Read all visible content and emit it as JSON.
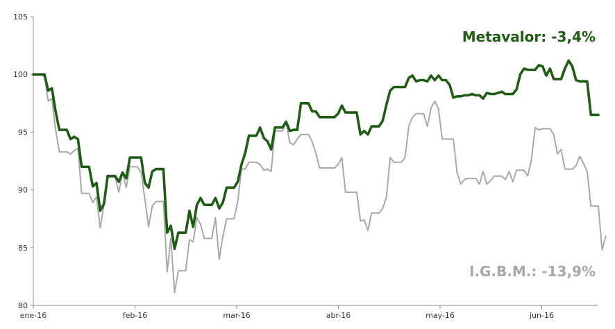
{
  "chart_data": {
    "type": "line",
    "title": "",
    "xlabel": "",
    "ylabel": "",
    "ylim": [
      80,
      105
    ],
    "y_ticks": [
      "80",
      "85",
      "90",
      "95",
      "100",
      "105"
    ],
    "x_ticks": [
      "ene-16",
      "feb-16",
      "mar-16",
      "abr-16",
      "may-16",
      "jun-16"
    ],
    "grid": false,
    "annotations": {
      "metavalor": "Metavalor: -3,4%",
      "igbm": "I.G.B.M.: -13,9%"
    },
    "colors": {
      "metavalor": "#1e5c14",
      "igbm": "#a8a8a8"
    },
    "series": [
      {
        "key": "metavalor",
        "values": [
          100,
          100,
          100,
          100,
          98.6,
          98.8,
          96.8,
          95.2,
          95.2,
          95.2,
          94.4,
          94.6,
          94.4,
          92,
          92,
          92,
          90.3,
          90.6,
          88.2,
          88.8,
          91.2,
          91.2,
          91.2,
          90.7,
          91.5,
          91,
          92.8,
          92.8,
          92.8,
          92.8,
          90.6,
          90.2,
          91.6,
          91.8,
          91.8,
          91.8,
          86.3,
          86.9,
          84.9,
          86.3,
          86.3,
          86.3,
          88.2,
          86.8,
          88.7,
          89.3,
          88.7,
          88.7,
          88.7,
          89.3,
          88.4,
          88.9,
          90.2,
          90.2,
          90.2,
          90.7,
          92.2,
          93.2,
          94.7,
          94.7,
          94.7,
          95.4,
          94.5,
          94.2,
          93.5,
          95.4,
          95.4,
          95.4,
          95.9,
          95.1,
          95.2,
          95.2,
          97.5,
          97.5,
          97.5,
          96.8,
          96.8,
          96.3,
          96.3,
          96.3,
          96.3,
          96.3,
          96.6,
          97.3,
          96.7,
          96.7,
          96.7,
          96.7,
          94.8,
          95.1,
          94.8,
          95.5,
          95.5,
          95.5,
          96,
          97.4,
          98.6,
          98.9,
          98.9,
          98.9,
          98.9,
          99.7,
          99.9,
          99.4,
          99.5,
          99.5,
          99.4,
          99.9,
          99.5,
          99.9,
          99.5,
          99.5,
          99.1,
          98,
          98.1,
          98.1,
          98.2,
          98.2,
          98.3,
          98.2,
          98.2,
          97.9,
          98.4,
          98.3,
          98.3,
          98.4,
          98.5,
          98.3,
          98.3,
          98.3,
          98.7,
          100,
          100.5,
          100.4,
          100.4,
          100.4,
          100.8,
          100.7,
          99.9,
          100.5,
          99.6,
          99.6,
          99.6,
          100.5,
          101.2,
          100.7,
          99.5,
          99.4,
          99.4,
          99.4,
          96.5,
          96.5,
          96.5
        ]
      },
      {
        "key": "igbm",
        "values": [
          100,
          100,
          100,
          99.8,
          97.7,
          97.9,
          95.2,
          93.3,
          93.3,
          93.3,
          93.1,
          93.4,
          93.6,
          89.7,
          89.7,
          89.7,
          88.9,
          89.4,
          86.7,
          88.7,
          91.1,
          91.1,
          91.1,
          89.8,
          91.5,
          90.2,
          92,
          92,
          92,
          91.5,
          89.2,
          86.8,
          88.6,
          89,
          89,
          89,
          82.9,
          85.8,
          81.1,
          83,
          83,
          83,
          85.7,
          85.5,
          87.6,
          87,
          85.8,
          85.8,
          85.8,
          87.6,
          84,
          86,
          87.5,
          87.5,
          87.5,
          89,
          91.8,
          91.8,
          92.4,
          92.4,
          92.4,
          92.2,
          91.7,
          91.8,
          91.6,
          95.1,
          95.1,
          95.1,
          95.8,
          94.1,
          93.9,
          94.4,
          94.8,
          94.8,
          94.8,
          94.2,
          93.2,
          91.9,
          91.9,
          91.9,
          91.9,
          91.9,
          92.2,
          92.8,
          89.8,
          89.8,
          89.8,
          89.8,
          87.3,
          87.4,
          86.5,
          88,
          88,
          88,
          88.4,
          89.4,
          92.8,
          92.4,
          92.4,
          92.4,
          92.8,
          95.5,
          96.3,
          96.6,
          96.6,
          96.6,
          95.5,
          97.1,
          97.7,
          97,
          94.4,
          94.4,
          94.4,
          94.4,
          91.5,
          90.5,
          90.9,
          91,
          91,
          91,
          90.5,
          91.6,
          90.5,
          90.8,
          91.2,
          91.2,
          91.2,
          90.9,
          91.6,
          90.7,
          91.7,
          91.7,
          91.7,
          91.2,
          92.6,
          95.4,
          95.2,
          95.3,
          95.3,
          95.3,
          94.8,
          93.1,
          93.5,
          91.8,
          91.8,
          91.8,
          92.1,
          92.9,
          92.3,
          91.6,
          88.6,
          88.6,
          88.6,
          84.8,
          86
        ]
      }
    ]
  }
}
